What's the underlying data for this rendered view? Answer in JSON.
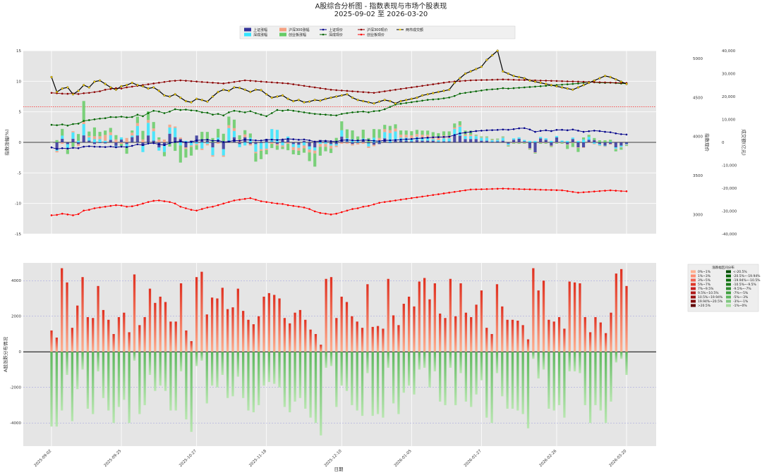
{
  "title": "A股综合分析图 - 指数表现与市场个股表现",
  "subtitle": "2025-09-02 至 2026-03-20",
  "colors": {
    "sh": "#00008b",
    "sz": "#006400",
    "hs300": "#8b0000",
    "cyb": "#ff0000",
    "turnover": "#000000",
    "turnover_marker": "#ffd700",
    "bar_sh": "#333399",
    "bar_sz": "#33e5ff",
    "bar_hs300": "#f5a080",
    "bar_cyb": "#66cc66",
    "panel_bg": "#e5e5e5",
    "hline": "#ff0000"
  },
  "chart_data": [
    {
      "type": "line+bar",
      "panel": "top",
      "ylabel": "指数涨幅(%)",
      "ylabel_right1": "指数现价",
      "ylabel_right2": "成交额(亿元)",
      "ylim": [
        -15,
        15
      ],
      "ylim_price": [
        2750,
        5100
      ],
      "ylim_turnover": [
        -40000,
        40000
      ],
      "yticks": [
        "-15",
        "-10",
        "-5",
        "0",
        "5",
        "10",
        "15"
      ],
      "price_ticks": [
        "3000",
        "3500",
        "4000",
        "4500",
        "5000"
      ],
      "turnover_ticks": [
        "-40,000",
        "-30,000",
        "-20,000",
        "-10,000",
        "0",
        "10,000",
        "20,000",
        "30,000",
        "40,000"
      ],
      "hline_value": 5.8,
      "grid": true,
      "legend_position": "top-center",
      "legend": [
        "上证涨幅",
        "深成涨幅",
        "沪深300涨幅",
        "创业板涨幅",
        "上证现价",
        "深成现价",
        "沪深300现价",
        "创业板现价",
        "两市成交额"
      ],
      "series": [
        {
          "name": "上证现价",
          "type": "line",
          "axis": "price",
          "values": [
            3860,
            3840,
            3850,
            3845,
            3855,
            3850,
            3870,
            3875,
            3870,
            3868,
            3865,
            3872,
            3862,
            3870,
            3865,
            3880,
            3900,
            3890,
            3910,
            3915,
            3900,
            3890,
            3915,
            3930,
            3940,
            3925,
            3930,
            3950,
            3955,
            3960,
            3945,
            3950,
            3930,
            3935,
            3950,
            3945,
            3960,
            3955,
            3950,
            3948,
            3958,
            3960,
            3955,
            3962,
            3970,
            3965,
            3958,
            3962,
            3950,
            3935,
            3942,
            3945,
            3940,
            3935,
            3952,
            3955,
            3950,
            3948,
            3955,
            3952,
            3945,
            3940,
            3952,
            3950,
            3955,
            3960,
            3965,
            3968,
            3975,
            3980,
            3985,
            3990,
            3992,
            3995,
            3998,
            4020,
            4040,
            4050,
            4060,
            4070,
            4075,
            4080,
            4082,
            4085,
            4090,
            4086,
            4094,
            4105,
            4108,
            4090,
            4060,
            4072,
            4080,
            4070,
            4085,
            4086,
            4080,
            4090,
            4075,
            4060,
            4068,
            4075,
            4070,
            4060,
            4055,
            4040,
            4030,
            4025
          ]
        },
        {
          "name": "深成现价",
          "type": "line",
          "axis": "price",
          "values": [
            4150,
            4145,
            4155,
            4140,
            4160,
            4165,
            4200,
            4210,
            4220,
            4230,
            4235,
            4250,
            4248,
            4255,
            4245,
            4250,
            4280,
            4260,
            4300,
            4330,
            4320,
            4300,
            4320,
            4350,
            4340,
            4345,
            4335,
            4330,
            4310,
            4305,
            4280,
            4290,
            4270,
            4310,
            4330,
            4320,
            4310,
            4325,
            4300,
            4280,
            4260,
            4300,
            4340,
            4330,
            4340,
            4330,
            4320,
            4310,
            4300,
            4290,
            4285,
            4280,
            4275,
            4270,
            4290,
            4300,
            4310,
            4315,
            4320,
            4310,
            4325,
            4330,
            4350,
            4380,
            4410,
            4420,
            4430,
            4440,
            4450,
            4460,
            4470,
            4475,
            4480,
            4490,
            4500,
            4520,
            4550,
            4560,
            4570,
            4580,
            4590,
            4600,
            4605,
            4610,
            4620,
            4615,
            4620,
            4625,
            4630,
            4635,
            4640,
            4645,
            4650,
            4655,
            4660,
            4665,
            4670,
            4675,
            4680,
            4690,
            4700,
            4695,
            4690,
            4688,
            4690,
            4685,
            4680,
            4678
          ]
        },
        {
          "name": "沪深300现价",
          "type": "line",
          "axis": "price",
          "values": [
            4560,
            4555,
            4550,
            4548,
            4552,
            4545,
            4555,
            4560,
            4570,
            4580,
            4600,
            4610,
            4620,
            4615,
            4630,
            4640,
            4650,
            4660,
            4670,
            4680,
            4690,
            4700,
            4710,
            4715,
            4720,
            4715,
            4710,
            4705,
            4700,
            4695,
            4690,
            4685,
            4680,
            4690,
            4700,
            4710,
            4720,
            4715,
            4710,
            4705,
            4700,
            4695,
            4690,
            4685,
            4680,
            4670,
            4660,
            4650,
            4640,
            4630,
            4620,
            4610,
            4600,
            4595,
            4590,
            4585,
            4580,
            4575,
            4570,
            4565,
            4560,
            4570,
            4580,
            4590,
            4600,
            4610,
            4620,
            4630,
            4640,
            4650,
            4660,
            4670,
            4680,
            4690,
            4700,
            4705,
            4710,
            4715,
            4720,
            4722,
            4724,
            4726,
            4728,
            4730,
            4732,
            4730,
            4728,
            4726,
            4724,
            4722,
            4720,
            4718,
            4716,
            4714,
            4712,
            4710,
            4708,
            4706,
            4704,
            4702,
            4700,
            4698,
            4696,
            4694,
            4692,
            4690,
            4688,
            4686
          ]
        },
        {
          "name": "创业板现价",
          "type": "line",
          "axis": "price",
          "values": [
            2990,
            2995,
            3010,
            3000,
            2990,
            3005,
            3050,
            3060,
            3080,
            3090,
            3100,
            3110,
            3120,
            3115,
            3100,
            3105,
            3120,
            3140,
            3160,
            3175,
            3180,
            3170,
            3160,
            3140,
            3100,
            3080,
            3060,
            3050,
            3070,
            3090,
            3100,
            3120,
            3140,
            3160,
            3180,
            3190,
            3200,
            3210,
            3190,
            3170,
            3160,
            3150,
            3140,
            3135,
            3120,
            3110,
            3100,
            3090,
            3070,
            3040,
            3020,
            3010,
            3000,
            3010,
            3030,
            3050,
            3070,
            3080,
            3100,
            3110,
            3130,
            3150,
            3160,
            3170,
            3180,
            3190,
            3200,
            3210,
            3220,
            3230,
            3240,
            3250,
            3260,
            3270,
            3280,
            3290,
            3300,
            3310,
            3320,
            3322,
            3324,
            3326,
            3328,
            3330,
            3332,
            3330,
            3328,
            3326,
            3324,
            3322,
            3320,
            3318,
            3316,
            3314,
            3312,
            3310,
            3300,
            3290,
            3280,
            3285,
            3290,
            3295,
            3300,
            3305,
            3310,
            3305,
            3300,
            3298
          ]
        },
        {
          "name": "两市成交额",
          "type": "line",
          "axis": "turnover",
          "values": [
            28500,
            22000,
            23500,
            24000,
            21000,
            22500,
            25000,
            24000,
            26500,
            27000,
            25500,
            24000,
            23000,
            24500,
            25000,
            26000,
            25000,
            24500,
            23500,
            24000,
            22500,
            20500,
            20000,
            21000,
            19500,
            18000,
            17500,
            19000,
            18500,
            17800,
            20000,
            22000,
            23000,
            22500,
            24000,
            23800,
            23000,
            22000,
            23000,
            22800,
            21000,
            19500,
            20000,
            20500,
            19000,
            18000,
            18500,
            17500,
            17800,
            18500,
            18200,
            19000,
            19500,
            20000,
            20500,
            21000,
            19500,
            18500,
            18000,
            17500,
            17000,
            17800,
            18500,
            18000,
            17000,
            18000,
            18500,
            19000,
            19500,
            20500,
            21000,
            21500,
            22000,
            22500,
            23000,
            26000,
            28000,
            30000,
            31000,
            32000,
            33000,
            36000,
            38000,
            40000,
            31000,
            30000,
            29000,
            28500,
            28000,
            27000,
            26500,
            26000,
            25500,
            25000,
            24500,
            24000,
            23500,
            23000,
            24000,
            25000,
            26000,
            27000,
            28000,
            29000,
            28500,
            27500,
            26500,
            25500
          ]
        }
      ]
    },
    {
      "type": "bar",
      "panel": "bottom",
      "xlabel": "日期",
      "ylabel": "A股涨跌分布情况",
      "ylim": [
        -5300,
        5000
      ],
      "yticks": [
        "-4000",
        "-2000",
        "0",
        "2000",
        "4000"
      ],
      "x_tick_labels": [
        "2025-09-02",
        "2025-09-25",
        "2025-10-27",
        "2025-11-18",
        "2025-12-10",
        "2026-01-05",
        "2026-01-27",
        "2026-02-26",
        "2026-03-20"
      ],
      "legend_title": "涨跌幅区间分布",
      "legend": [
        "0%~1%",
        "1%~3%",
        "3%~5%",
        "5%~7%",
        "7%~9.5%",
        "9.5%~10.5%",
        "10.5%~19.94%",
        "19.94%~20.5%",
        ">20.5%",
        "<-20.5%",
        "-20.5%~-19.94%",
        "-19.94%~-10.5%",
        "-10.5%~-9.5%",
        "-9.5%~-7%",
        "-7%~-5%",
        "-5%~-3%",
        "-3%~-1%",
        "-1%~0%"
      ],
      "series": [
        {
          "name": "up",
          "values": [
            1200,
            800,
            4700,
            3900,
            1350,
            2600,
            4200,
            1950,
            1900,
            3700,
            2350,
            1800,
            1000,
            1950,
            2200,
            1100,
            4350,
            1500,
            1950,
            3550,
            2750,
            3100,
            2800,
            1700,
            1700,
            3850,
            1200,
            600,
            4200,
            4500,
            2100,
            3050,
            3000,
            3600,
            2400,
            2500,
            3550,
            2300,
            1800,
            1550,
            2000,
            3100,
            3300,
            3200,
            3000,
            1900,
            1600,
            2200,
            2350,
            1800,
            1250,
            1000,
            400,
            4100,
            4200,
            1900,
            3100,
            2800,
            2000,
            1700,
            1350,
            3800,
            1400,
            1450,
            1300,
            4100,
            2050,
            1500,
            2700,
            3100,
            2550,
            3950,
            4150,
            2950,
            3850,
            2150,
            1900,
            4100,
            2000,
            3850,
            2200,
            1950,
            2650,
            3450,
            1350,
            1000,
            3800,
            2550,
            1800,
            1800,
            1750,
            1500,
            700,
            4700,
            3450,
            4000,
            1800,
            1700,
            1950,
            1300,
            3950,
            3900,
            3850,
            1950,
            1100,
            1950,
            1650,
            1050,
            2200,
            4400,
            4650,
            3700
          ]
        },
        {
          "name": "down",
          "values": [
            -4200,
            -4200,
            -3300,
            -1300,
            -3900,
            -2100,
            -1000,
            -3200,
            -3500,
            -1100,
            -2600,
            -3300,
            -4000,
            -3100,
            -2700,
            -4000,
            -500,
            -3500,
            -3000,
            -1300,
            -2200,
            -1900,
            -2200,
            -3300,
            -3300,
            -1100,
            -3800,
            -4500,
            -800,
            -500,
            -2900,
            -1900,
            -2000,
            -1300,
            -2600,
            -2500,
            -1400,
            -2600,
            -3300,
            -3400,
            -3000,
            -1900,
            -1700,
            -1800,
            -2000,
            -3100,
            -3400,
            -2800,
            -2600,
            -3200,
            -3700,
            -4000,
            -4700,
            -900,
            -800,
            -3100,
            -1900,
            -2200,
            -3000,
            -3300,
            -3600,
            -1200,
            -3600,
            -3500,
            -3700,
            -900,
            -2900,
            -3500,
            -2300,
            -1900,
            -2400,
            -1000,
            -900,
            -2000,
            -1100,
            -2800,
            -3000,
            -900,
            -3000,
            -1200,
            -2800,
            -3100,
            -2400,
            -1600,
            -3700,
            -4000,
            -1200,
            -2500,
            -3200,
            -3200,
            -3300,
            -3500,
            -4300,
            -400,
            -1500,
            -1000,
            -3200,
            -3300,
            -3000,
            -3700,
            -1100,
            -1100,
            -1200,
            -3000,
            -4000,
            -3000,
            -3300,
            -4000,
            -2800,
            -600,
            -400,
            -1300
          ]
        }
      ]
    }
  ]
}
